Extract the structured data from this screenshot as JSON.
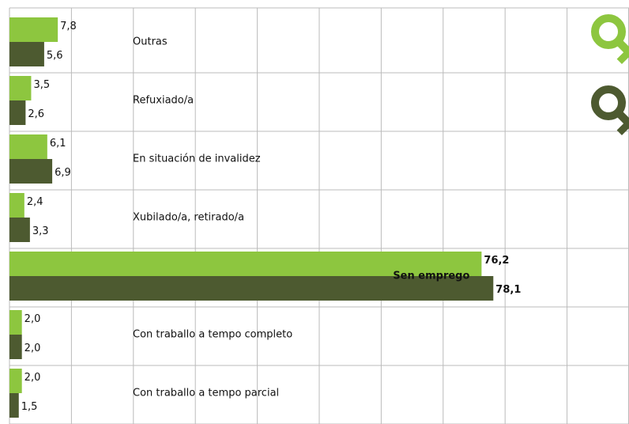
{
  "chart_data": {
    "type": "hbar",
    "categories": [
      "Outras",
      "Refuxiado/a",
      "En situación de invalidez",
      "Xubilado/a, retirado/a",
      "Sen emprego",
      "Con traballo a tempo completo",
      "Con traballo a tempo parcial"
    ],
    "series": [
      {
        "color": "#8dc63f",
        "values": [
          7.8,
          3.5,
          6.1,
          2.4,
          76.2,
          2.0,
          2.0
        ],
        "value_labels": [
          "7,8",
          "3,5",
          "6,1",
          "2,4",
          "76,2",
          "2,0",
          "2,0"
        ]
      },
      {
        "color": "#4d5a30",
        "values": [
          5.6,
          2.6,
          6.9,
          3.3,
          78.1,
          2.0,
          1.5
        ],
        "value_labels": [
          "5,6",
          "2,6",
          "6,9",
          "3,3",
          "78,1",
          "2,0",
          "1,5"
        ]
      }
    ],
    "xlim": [
      0,
      100
    ],
    "xticks": [
      0,
      10,
      20,
      30,
      40,
      50,
      60,
      70,
      80,
      90,
      100
    ],
    "grid": true
  }
}
